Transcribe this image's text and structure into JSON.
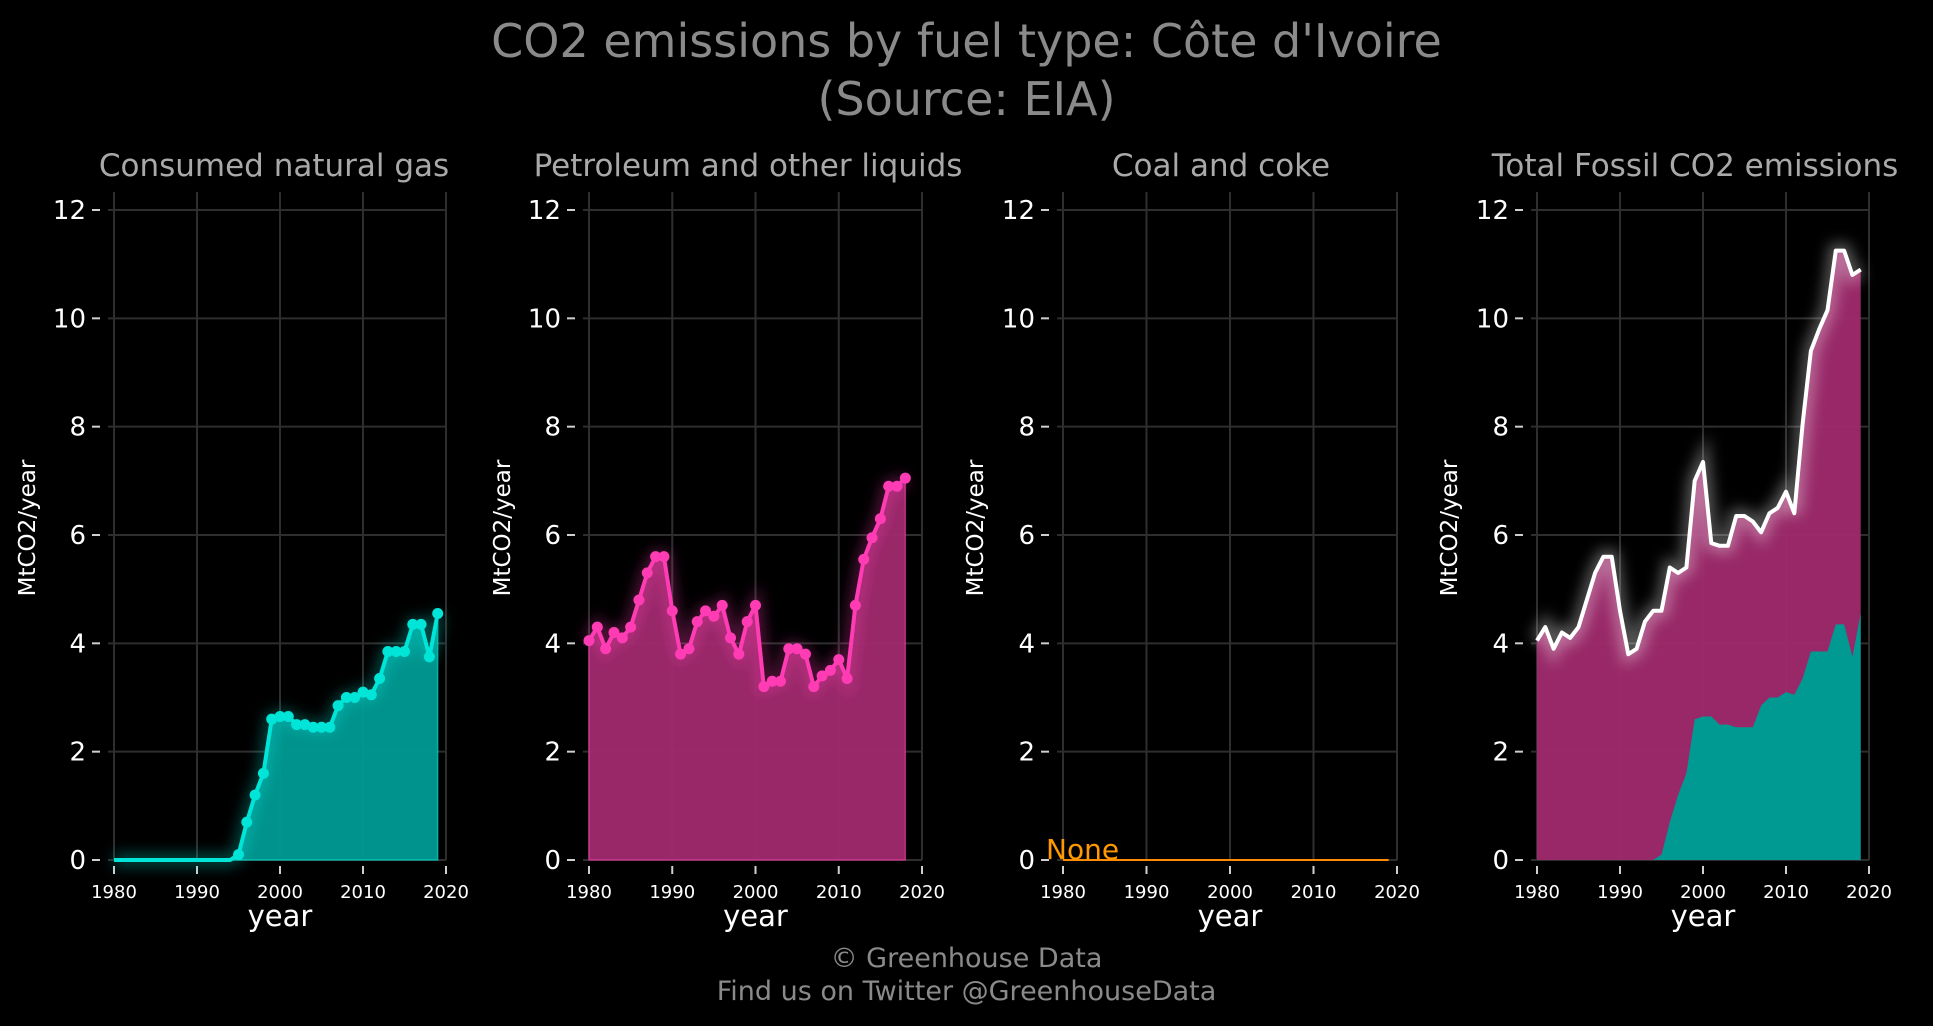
{
  "title_line1": "CO2 emissions by fuel type: Côte d'Ivoire",
  "title_line2": "(Source: EIA)",
  "footer_line1": "© Greenhouse Data",
  "footer_line2": "Find us on Twitter @GreenhouseData",
  "colors": {
    "gas": "#00e5d8",
    "gas_fill": "#009a93",
    "petroleum": "#ff3cb4",
    "petroleum_fill": "#a02a6e",
    "coal": "#ff8c00",
    "total_line": "#ffffff"
  },
  "chart_data": [
    {
      "type": "area",
      "title": "Consumed natural gas",
      "xlabel": "year",
      "ylabel": "MtCO2/year",
      "xlim": [
        1980,
        2020
      ],
      "ylim": [
        0,
        12
      ],
      "xticks": [
        "1980",
        "1990",
        "2000",
        "2010",
        "2020"
      ],
      "yticks": [
        "0",
        "2",
        "4",
        "6",
        "8",
        "10",
        "12"
      ],
      "series": [
        {
          "x": [
            1980,
            1981,
            1982,
            1983,
            1984,
            1985,
            1986,
            1987,
            1988,
            1989,
            1990,
            1991,
            1992,
            1993,
            1994,
            1995,
            1996,
            1997,
            1998,
            1999,
            2000,
            2001,
            2002,
            2003,
            2004,
            2005,
            2006,
            2007,
            2008,
            2009,
            2010,
            2011,
            2012,
            2013,
            2014,
            2015,
            2016,
            2017,
            2018,
            2019
          ],
          "values": [
            0,
            0,
            0,
            0,
            0,
            0,
            0,
            0,
            0,
            0,
            0,
            0,
            0,
            0,
            0,
            0.1,
            0.7,
            1.2,
            1.6,
            2.6,
            2.65,
            2.65,
            2.5,
            2.5,
            2.45,
            2.45,
            2.45,
            2.85,
            3.0,
            3.0,
            3.1,
            3.05,
            3.35,
            3.85,
            3.85,
            3.85,
            4.35,
            4.35,
            3.75,
            4.55
          ]
        }
      ]
    },
    {
      "type": "area",
      "title": "Petroleum and other liquids",
      "xlabel": "year",
      "ylabel": "MtCO2/year",
      "xlim": [
        1980,
        2020
      ],
      "ylim": [
        0,
        12
      ],
      "xticks": [
        "1980",
        "1990",
        "2000",
        "2010",
        "2020"
      ],
      "yticks": [
        "0",
        "2",
        "4",
        "6",
        "8",
        "10",
        "12"
      ],
      "series": [
        {
          "x": [
            1980,
            1981,
            1982,
            1983,
            1984,
            1985,
            1986,
            1987,
            1988,
            1989,
            1990,
            1991,
            1992,
            1993,
            1994,
            1995,
            1996,
            1997,
            1998,
            1999,
            2000,
            2001,
            2002,
            2003,
            2004,
            2005,
            2006,
            2007,
            2008,
            2009,
            2010,
            2011,
            2012,
            2013,
            2014,
            2015,
            2016,
            2017,
            2018
          ],
          "values": [
            4.05,
            4.3,
            3.9,
            4.2,
            4.1,
            4.3,
            4.8,
            5.3,
            5.6,
            5.6,
            4.6,
            3.8,
            3.9,
            4.4,
            4.6,
            4.5,
            4.7,
            4.1,
            3.8,
            4.4,
            4.7,
            3.2,
            3.3,
            3.3,
            3.9,
            3.9,
            3.8,
            3.2,
            3.4,
            3.5,
            3.7,
            3.35,
            4.7,
            5.55,
            5.95,
            6.3,
            6.9,
            6.9,
            7.05
          ]
        }
      ]
    },
    {
      "type": "area",
      "title": "Coal and coke",
      "xlabel": "year",
      "ylabel": "MtCO2/year",
      "xlim": [
        1980,
        2020
      ],
      "ylim": [
        0,
        12
      ],
      "xticks": [
        "1980",
        "1990",
        "2000",
        "2010",
        "2020"
      ],
      "yticks": [
        "0",
        "2",
        "4",
        "6",
        "8",
        "10",
        "12"
      ],
      "annotation": "None",
      "series": [
        {
          "x": [
            1980,
            2019
          ],
          "values": [
            0,
            0
          ]
        }
      ]
    },
    {
      "type": "area",
      "title": "Total Fossil CO2 emissions",
      "xlabel": "year",
      "ylabel": "MtCO2/year",
      "xlim": [
        1980,
        2020
      ],
      "ylim": [
        0,
        12
      ],
      "xticks": [
        "1980",
        "1990",
        "2000",
        "2010",
        "2020"
      ],
      "yticks": [
        "0",
        "2",
        "4",
        "6",
        "8",
        "10",
        "12"
      ],
      "series": [
        {
          "x": [
            1980,
            1981,
            1982,
            1983,
            1984,
            1985,
            1986,
            1987,
            1988,
            1989,
            1990,
            1991,
            1992,
            1993,
            1994,
            1995,
            1996,
            1997,
            1998,
            1999,
            2000,
            2001,
            2002,
            2003,
            2004,
            2005,
            2006,
            2007,
            2008,
            2009,
            2010,
            2011,
            2012,
            2013,
            2014,
            2015,
            2016,
            2017,
            2018,
            2019
          ],
          "values": [
            4.05,
            4.3,
            3.9,
            4.2,
            4.1,
            4.3,
            4.8,
            5.3,
            5.6,
            5.6,
            4.6,
            3.8,
            3.9,
            4.4,
            4.6,
            4.6,
            5.4,
            5.3,
            5.4,
            7.0,
            7.35,
            5.85,
            5.8,
            5.8,
            6.35,
            6.35,
            6.25,
            6.05,
            6.4,
            6.5,
            6.8,
            6.4,
            8.05,
            9.4,
            9.8,
            10.15,
            11.25,
            11.25,
            10.8,
            10.9
          ]
        }
      ]
    }
  ]
}
